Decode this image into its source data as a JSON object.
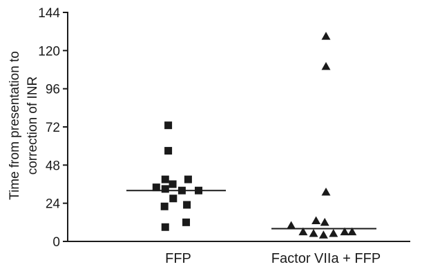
{
  "chart_data": {
    "type": "scatter",
    "title": "",
    "xlabel": "",
    "ylabel": "Time from presentation to correction of INR",
    "ylabel_lines": [
      "Time from presentation to",
      "correction of INR"
    ],
    "ylim": [
      0,
      144
    ],
    "yticks": [
      0,
      24,
      48,
      72,
      96,
      120,
      144
    ],
    "categories": [
      "FFP",
      "Factor VIIa + FFP"
    ],
    "grid": false,
    "series": [
      {
        "category": "FFP",
        "marker": "square",
        "median": 32,
        "points": [
          {
            "offset": -0.4,
            "y": 73
          },
          {
            "offset": -0.4,
            "y": 57
          },
          {
            "offset": -0.52,
            "y": 39
          },
          {
            "offset": 0.4,
            "y": 39
          },
          {
            "offset": -0.22,
            "y": 36
          },
          {
            "offset": -0.88,
            "y": 34
          },
          {
            "offset": -0.52,
            "y": 33
          },
          {
            "offset": 0.82,
            "y": 32
          },
          {
            "offset": 0.15,
            "y": 32
          },
          {
            "offset": -0.2,
            "y": 27
          },
          {
            "offset": -0.55,
            "y": 22
          },
          {
            "offset": 0.35,
            "y": 23
          },
          {
            "offset": 0.32,
            "y": 12
          },
          {
            "offset": -0.52,
            "y": 9
          }
        ]
      },
      {
        "category": "Factor VIIa + FFP",
        "marker": "triangle",
        "median": 8,
        "points": [
          {
            "offset": 0.0,
            "y": 129
          },
          {
            "offset": 0.0,
            "y": 110
          },
          {
            "offset": 0.0,
            "y": 31
          },
          {
            "offset": -0.4,
            "y": 13
          },
          {
            "offset": -0.05,
            "y": 12
          },
          {
            "offset": -1.4,
            "y": 10
          },
          {
            "offset": -0.92,
            "y": 6
          },
          {
            "offset": -0.5,
            "y": 5
          },
          {
            "offset": -0.1,
            "y": 4
          },
          {
            "offset": 0.3,
            "y": 5
          },
          {
            "offset": 0.75,
            "y": 6
          },
          {
            "offset": 1.05,
            "y": 6
          }
        ]
      }
    ]
  }
}
